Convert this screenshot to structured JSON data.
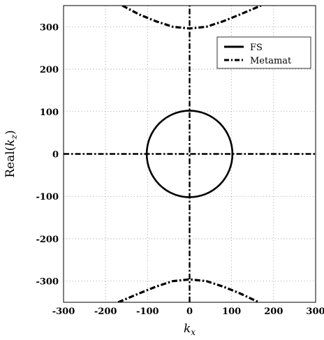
{
  "chart_data": {
    "type": "line",
    "title": "",
    "xlabel": "k_x",
    "ylabel": "Real(k_z)",
    "xlim": [
      -300,
      300
    ],
    "ylim": [
      -350,
      350
    ],
    "xticks": [
      -300,
      -200,
      -100,
      0,
      100,
      200,
      300
    ],
    "yticks": [
      -300,
      -200,
      -100,
      0,
      100,
      200,
      300
    ],
    "xtick_labels": [
      "-300",
      "-200",
      "-100",
      "0",
      "100",
      "200",
      "300"
    ],
    "ytick_labels": [
      "-300",
      "-200",
      "-100",
      "0",
      "100",
      "200",
      "300"
    ],
    "grid": true,
    "legend_position": "top-right",
    "series": [
      {
        "name": "FS",
        "style": "solid",
        "color": "#000000",
        "description_values": {
          "circle_radius": 102
        }
      },
      {
        "name": "Metamat",
        "style": "dash-dot",
        "color": "#000000",
        "upper_branch": {
          "x": [
            -160,
            -120,
            -80,
            -40,
            0,
            40,
            80,
            120,
            170
          ],
          "y": [
            350,
            329,
            313,
            300,
            296,
            300,
            313,
            329,
            350
          ]
        },
        "lower_branch": {
          "x": [
            -170,
            -120,
            -80,
            -40,
            0,
            40,
            80,
            120,
            165
          ],
          "y": [
            -350,
            -329,
            -313,
            -300,
            -296,
            -300,
            -313,
            -329,
            -350
          ]
        },
        "horizontal_line": {
          "x": [
            -300,
            300
          ],
          "y": [
            0,
            0
          ]
        },
        "vertical_line": {
          "x": [
            0,
            0
          ],
          "y": [
            -350,
            350
          ]
        }
      }
    ]
  }
}
